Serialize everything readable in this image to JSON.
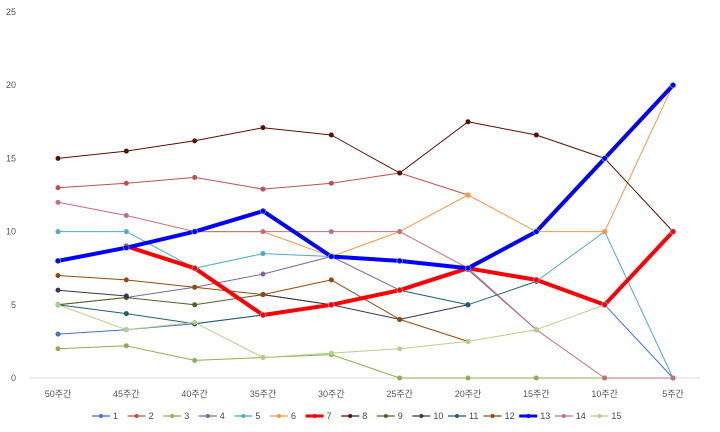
{
  "chart_data": {
    "type": "line",
    "title": "",
    "xlabel": "",
    "ylabel": "",
    "categories": [
      "50주간",
      "45주간",
      "40주간",
      "35주간",
      "30주간",
      "25주간",
      "20주간",
      "15주간",
      "10주간",
      "5주간"
    ],
    "ylim": [
      0,
      25
    ],
    "yticks": [
      0,
      5,
      10,
      15,
      20,
      25
    ],
    "grid": false,
    "legend_position": "bottom",
    "series": [
      {
        "name": "1",
        "color": "#4472c4",
        "width": 1,
        "values": [
          3,
          3.3,
          3.7,
          4.3,
          5,
          6,
          7.4,
          6.6,
          5,
          0
        ]
      },
      {
        "name": "2",
        "color": "#c0504d",
        "width": 1,
        "values": [
          13,
          13.3,
          13.7,
          12.9,
          13.3,
          14,
          12.5,
          null,
          null,
          null
        ]
      },
      {
        "name": "3",
        "color": "#8bb050",
        "width": 1,
        "values": [
          2,
          2.2,
          1.2,
          1.4,
          1.6,
          0,
          0,
          0,
          0,
          0
        ]
      },
      {
        "name": "4",
        "color": "#8064a2",
        "width": 1,
        "values": [
          5,
          5.5,
          6.2,
          7.1,
          8.3,
          6,
          7.4,
          3.3,
          null,
          null
        ]
      },
      {
        "name": "5",
        "color": "#4bacc6",
        "width": 1,
        "values": [
          10,
          10,
          7.5,
          8.5,
          8.3,
          8,
          7.5,
          6.6,
          10,
          0
        ]
      },
      {
        "name": "6",
        "color": "#f79646",
        "width": 1,
        "values": [
          null,
          null,
          10,
          10,
          8.3,
          10,
          12.5,
          10,
          10,
          20
        ]
      },
      {
        "name": "7",
        "color": "#ff0000",
        "width": 4,
        "values": [
          null,
          9,
          7.5,
          4.3,
          5,
          6,
          7.5,
          6.7,
          5,
          10
        ]
      },
      {
        "name": "8",
        "color": "#5b0f00",
        "width": 1,
        "values": [
          15,
          15.5,
          16.2,
          17.1,
          16.6,
          14,
          17.5,
          16.6,
          15,
          10
        ]
      },
      {
        "name": "9",
        "color": "#4f6228",
        "width": 1,
        "values": [
          5,
          5.5,
          5,
          5.7,
          5,
          null,
          null,
          null,
          null,
          null
        ]
      },
      {
        "name": "10",
        "color": "#3f3151",
        "width": 1,
        "values": [
          6,
          5.6,
          null,
          5.7,
          5,
          4,
          5,
          null,
          null,
          null
        ]
      },
      {
        "name": "11",
        "color": "#1f5f6f",
        "width": 1,
        "values": [
          5,
          4.4,
          3.7,
          4.3,
          5,
          6,
          5,
          6.6,
          5,
          null
        ]
      },
      {
        "name": "12",
        "color": "#984807",
        "width": 1,
        "values": [
          7,
          6.7,
          6.2,
          5.7,
          6.7,
          4,
          2.5,
          null,
          null,
          null
        ]
      },
      {
        "name": "13",
        "color": "#0000ff",
        "width": 4,
        "values": [
          8,
          8.9,
          10,
          11.4,
          8.3,
          8,
          7.5,
          10,
          15,
          20
        ]
      },
      {
        "name": "14",
        "color": "#c0707a",
        "width": 1,
        "values": [
          12,
          11.1,
          10,
          10,
          10,
          10,
          7.5,
          3.3,
          0,
          0
        ]
      },
      {
        "name": "15",
        "color": "#b5ce8a",
        "width": 1,
        "values": [
          5,
          3.3,
          3.8,
          1.4,
          1.7,
          2,
          2.5,
          3.3,
          5,
          10
        ]
      }
    ]
  }
}
